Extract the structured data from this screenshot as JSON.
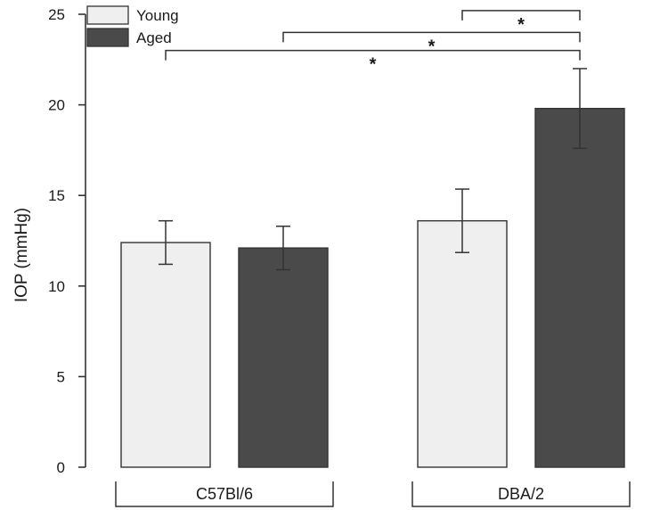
{
  "chart_data": {
    "type": "bar",
    "title": "",
    "xlabel": "",
    "ylabel": "IOP (mmHg)",
    "ylim": [
      0,
      25
    ],
    "yticks": [
      0,
      5,
      10,
      15,
      20,
      25
    ],
    "groups": [
      "C57Bl/6",
      "DBA/2"
    ],
    "series": [
      {
        "name": "Young",
        "color": "#efefef",
        "values": [
          12.4,
          13.6
        ],
        "errors": [
          1.2,
          1.75
        ]
      },
      {
        "name": "Aged",
        "color": "#4a4a4a",
        "values": [
          12.1,
          19.8
        ],
        "errors": [
          1.2,
          2.2
        ]
      }
    ],
    "legend": {
      "position": "top-left",
      "entries": [
        "Young",
        "Aged"
      ]
    },
    "significance": [
      {
        "from": "DBA/2 Young",
        "to": "DBA/2 Aged",
        "label": "*",
        "y": 25.2
      },
      {
        "from": "C57Bl/6 Aged",
        "to": "DBA/2 Aged",
        "label": "*",
        "y": 24.0
      },
      {
        "from": "C57Bl/6 Young",
        "to": "DBA/2 Aged",
        "label": "*",
        "y": 23.0
      }
    ],
    "grid": false
  }
}
